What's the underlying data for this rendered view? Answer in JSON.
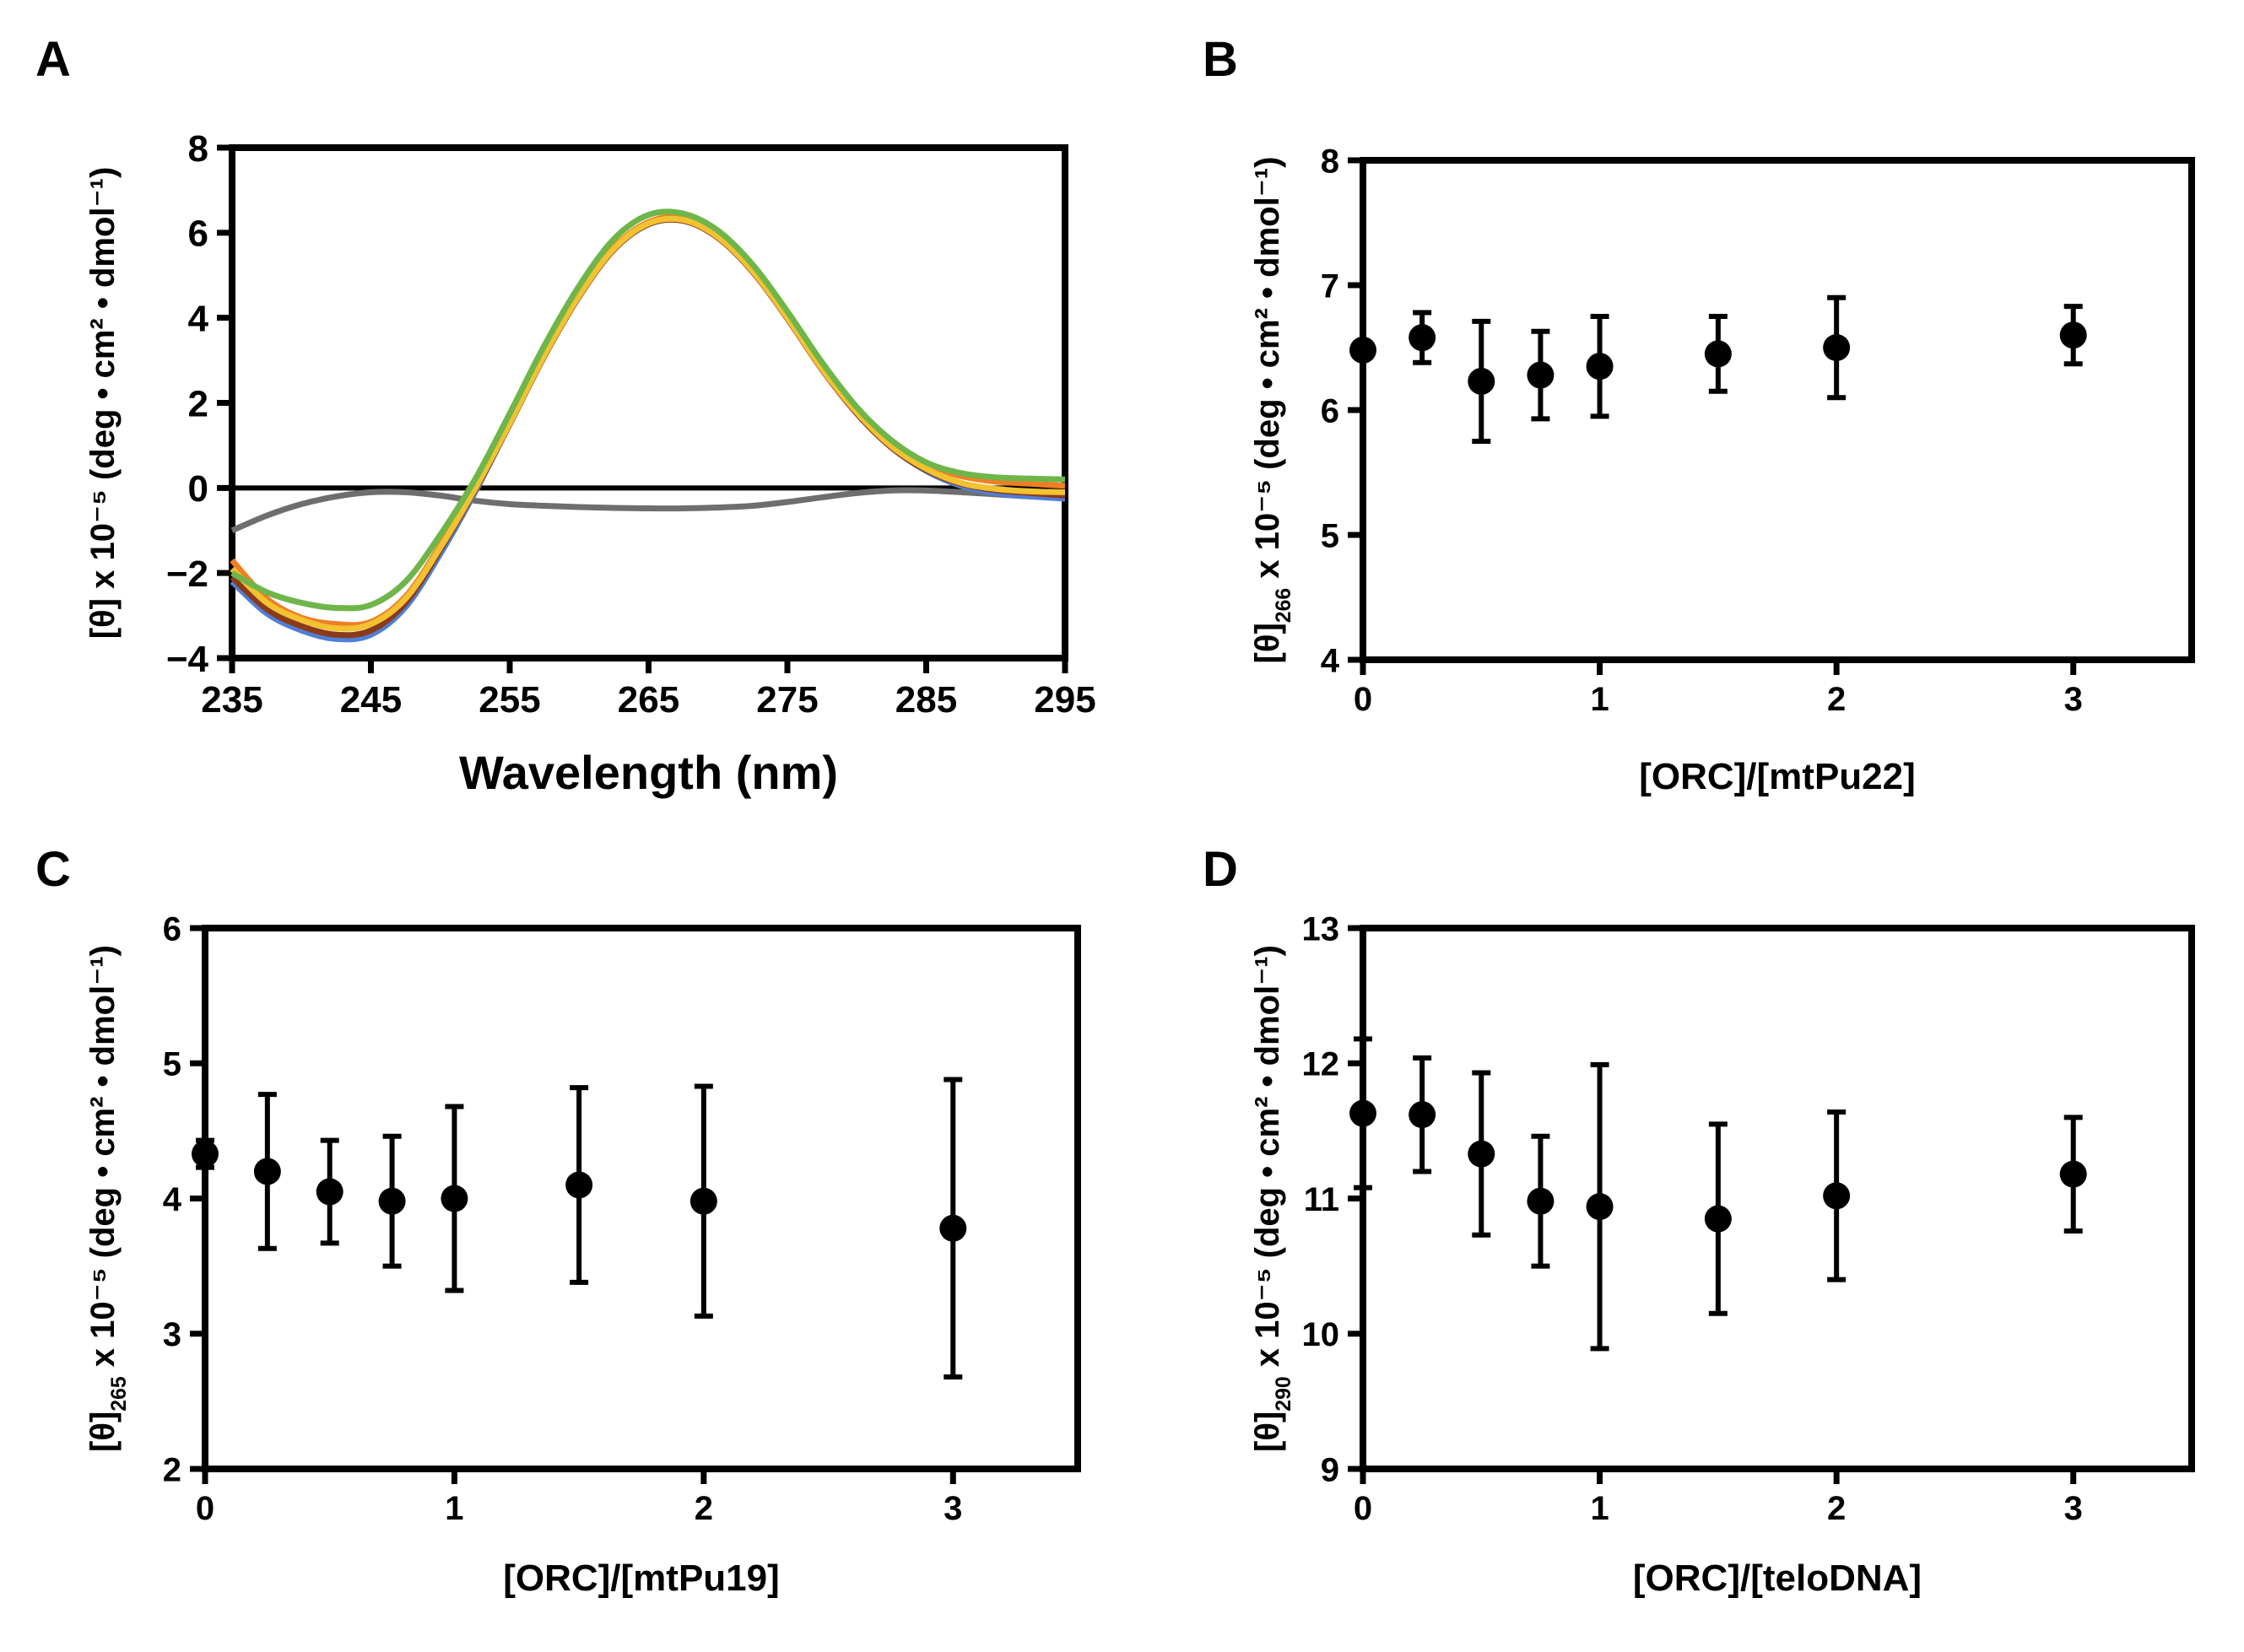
{
  "figure": {
    "panels": [
      {
        "id": "A",
        "label": "A"
      },
      {
        "id": "B",
        "label": "B"
      },
      {
        "id": "C",
        "label": "C"
      },
      {
        "id": "D",
        "label": "D"
      }
    ]
  },
  "chart_data": [
    {
      "panel": "A",
      "type": "line",
      "title": "",
      "xlabel": "Wavelength (nm)",
      "ylabel": "[θ] x 10⁻⁵ (deg • cm² • dmol⁻¹)",
      "xlim": [
        235,
        295
      ],
      "ylim": [
        -4,
        8
      ],
      "xticks": [
        235,
        245,
        255,
        265,
        275,
        285,
        295
      ],
      "yticks": [
        -4,
        -2,
        0,
        2,
        4,
        6,
        8
      ],
      "zero_line": true,
      "x": [
        235,
        237.5,
        240,
        242.5,
        245,
        247.5,
        250,
        252.5,
        255,
        257.5,
        260,
        262.5,
        265,
        267.5,
        270,
        272.5,
        275,
        277.5,
        280,
        282.5,
        285,
        287.5,
        290,
        292.5,
        295
      ],
      "series": [
        {
          "name": "gray",
          "color": "#6e6e6e",
          "values": [
            -1.0,
            -0.65,
            -0.38,
            -0.2,
            -0.1,
            -0.1,
            -0.18,
            -0.3,
            -0.38,
            -0.42,
            -0.45,
            -0.47,
            -0.48,
            -0.48,
            -0.46,
            -0.42,
            -0.33,
            -0.22,
            -0.12,
            -0.06,
            -0.06,
            -0.1,
            -0.15,
            -0.2,
            -0.22
          ]
        },
        {
          "name": "blue",
          "color": "#4f7fd6",
          "values": [
            -2.2,
            -2.95,
            -3.35,
            -3.55,
            -3.45,
            -2.8,
            -1.55,
            -0.1,
            1.5,
            3.1,
            4.5,
            5.6,
            6.2,
            6.3,
            5.9,
            5.1,
            4.0,
            2.8,
            1.75,
            0.95,
            0.4,
            0.05,
            -0.12,
            -0.2,
            -0.25
          ]
        },
        {
          "name": "brown",
          "color": "#8b3a1a",
          "values": [
            -2.1,
            -2.85,
            -3.25,
            -3.45,
            -3.35,
            -2.7,
            -1.45,
            -0.05,
            1.5,
            3.1,
            4.5,
            5.6,
            6.2,
            6.28,
            5.88,
            5.08,
            3.98,
            2.78,
            1.75,
            0.95,
            0.42,
            0.1,
            -0.05,
            -0.12,
            -0.18
          ]
        },
        {
          "name": "orange",
          "color": "#f07f24",
          "values": [
            -1.7,
            -2.6,
            -3.05,
            -3.2,
            -3.15,
            -2.55,
            -1.35,
            0.0,
            1.55,
            3.15,
            4.55,
            5.65,
            6.25,
            6.35,
            5.95,
            5.15,
            4.05,
            2.85,
            1.85,
            1.08,
            0.55,
            0.28,
            0.15,
            0.1,
            0.05
          ]
        },
        {
          "name": "yellow",
          "color": "#f2c230",
          "values": [
            -1.9,
            -2.7,
            -3.1,
            -3.3,
            -3.2,
            -2.6,
            -1.4,
            -0.02,
            1.52,
            3.12,
            4.52,
            5.62,
            6.22,
            6.3,
            5.9,
            5.1,
            4.0,
            2.8,
            1.78,
            0.98,
            0.45,
            0.12,
            -0.02,
            -0.08,
            -0.1
          ]
        },
        {
          "name": "green",
          "color": "#6fb64a",
          "values": [
            -2.0,
            -2.45,
            -2.7,
            -2.82,
            -2.75,
            -2.2,
            -1.1,
            0.2,
            1.75,
            3.35,
            4.75,
            5.85,
            6.42,
            6.45,
            6.05,
            5.25,
            4.15,
            2.95,
            1.9,
            1.12,
            0.6,
            0.35,
            0.25,
            0.22,
            0.2
          ]
        }
      ]
    },
    {
      "panel": "B",
      "type": "scatter",
      "xlabel": "[ORC]/[mtPu22]",
      "ylabel_main": "[θ]",
      "ylabel_sub": "266",
      "ylabel_rest": " x 10⁻⁵ (deg • cm² • dmol⁻¹)",
      "xlim": [
        0,
        3.5
      ],
      "ylim": [
        4,
        8
      ],
      "xticks": [
        0,
        1,
        2,
        3
      ],
      "yticks": [
        4,
        5,
        6,
        7,
        8
      ],
      "x": [
        0,
        0.25,
        0.5,
        0.75,
        1,
        1.5,
        2,
        3
      ],
      "y": [
        6.48,
        6.58,
        6.23,
        6.28,
        6.35,
        6.45,
        6.5,
        6.6
      ],
      "err": [
        0,
        0.2,
        0.48,
        0.35,
        0.4,
        0.3,
        0.4,
        0.23
      ]
    },
    {
      "panel": "C",
      "type": "scatter",
      "xlabel": "[ORC]/[mtPu19]",
      "ylabel_main": "[θ]",
      "ylabel_sub": "265",
      "ylabel_rest": " x 10⁻⁵ (deg • cm² • dmol⁻¹)",
      "xlim": [
        0,
        3.5
      ],
      "ylim": [
        2,
        6
      ],
      "xticks": [
        0,
        1,
        2,
        3
      ],
      "yticks": [
        2,
        3,
        4,
        5,
        6
      ],
      "x": [
        0,
        0.25,
        0.5,
        0.75,
        1,
        1.5,
        2,
        3
      ],
      "y": [
        4.33,
        4.2,
        4.05,
        3.98,
        4.0,
        4.1,
        3.98,
        3.78
      ],
      "err": [
        0.1,
        0.57,
        0.38,
        0.48,
        0.68,
        0.72,
        0.85,
        1.1
      ]
    },
    {
      "panel": "D",
      "type": "scatter",
      "xlabel": "[ORC]/[teloDNA]",
      "ylabel_main": "[θ]",
      "ylabel_sub": "290",
      "ylabel_rest": " x 10⁻⁵ (deg • cm² • dmol⁻¹)",
      "xlim": [
        0,
        3.5
      ],
      "ylim": [
        9,
        13
      ],
      "xticks": [
        0,
        1,
        2,
        3
      ],
      "yticks": [
        9,
        10,
        11,
        12,
        13
      ],
      "x": [
        0,
        0.25,
        0.5,
        0.75,
        1,
        1.5,
        2,
        3
      ],
      "y": [
        11.63,
        11.62,
        11.33,
        10.98,
        10.94,
        10.85,
        11.02,
        11.18
      ],
      "err": [
        0.55,
        0.42,
        0.6,
        0.48,
        1.05,
        0.7,
        0.62,
        0.42
      ]
    }
  ]
}
